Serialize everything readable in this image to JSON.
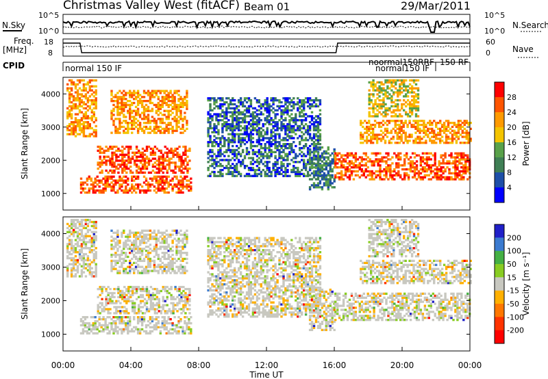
{
  "header": {
    "title": "Christmas Valley West (fitACF)",
    "beam": "Beam 01",
    "date": "29/Mar/2011"
  },
  "left_labels": {
    "nsky": "N.Sky",
    "freq": "Freq.",
    "freq_unit": "[MHz]",
    "cpid": "CPID"
  },
  "right_labels": {
    "nsearch": "N.Search",
    "nave": "Nave"
  },
  "noise_axis": {
    "left_ticks": [
      "10^5",
      "10^0"
    ],
    "right_ticks": [
      "10^5",
      "10^0"
    ]
  },
  "freq_axis": {
    "left_ticks": [
      "18",
      "8"
    ],
    "right_ticks": [
      "60",
      "0"
    ]
  },
  "cpid_strip": {
    "main": "normal 150 IF",
    "overlap_1": "noormal150RRF",
    "overlap_2": "normal150 IF",
    "overlap_3": "150 RF"
  },
  "colors": {
    "power": [
      "#0000ff",
      "#1e4fa8",
      "#3f7f55",
      "#59a14a",
      "#f4c400",
      "#ff9a00",
      "#ff5500",
      "#ff0000"
    ],
    "velocity": [
      "#2020c8",
      "#3b7bd0",
      "#44b044",
      "#88cc22",
      "#c8c8c0",
      "#ffb000",
      "#ff7700",
      "#ff3300",
      "#ff0000"
    ]
  },
  "chart_data": [
    {
      "type": "heatmap",
      "panel": "power",
      "ylabel": "Slant Range [km]",
      "yticks": [
        "1000",
        "2000",
        "3000",
        "4000"
      ],
      "ylim": [
        500,
        4500
      ],
      "colorbar_label": "Power [dB]",
      "colorbar_ticks": [
        "4",
        "8",
        "12",
        "16",
        "20",
        "24",
        "28"
      ]
    },
    {
      "type": "heatmap",
      "panel": "velocity",
      "ylabel": "Slant Range [km]",
      "yticks": [
        "1000",
        "2000",
        "3000",
        "4000"
      ],
      "ylim": [
        500,
        4500
      ],
      "colorbar_label": "Velocity [m s⁻¹]",
      "colorbar_ticks": [
        "200",
        "100",
        "50",
        "15",
        "-15",
        "-50",
        "-100",
        "-200"
      ]
    },
    {
      "type": "line",
      "panel": "time-axis",
      "xlabel": "Time UT",
      "xticks": [
        "00:00",
        "04:00",
        "08:00",
        "12:00",
        "16:00",
        "20:00",
        "00:00"
      ],
      "xlim": [
        0,
        24
      ]
    }
  ]
}
